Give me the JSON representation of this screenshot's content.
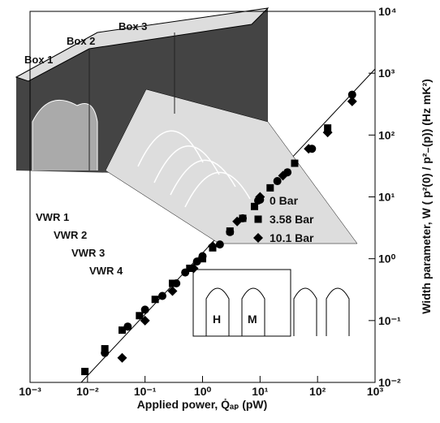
{
  "chart_data": {
    "type": "scatter",
    "x_label": "Applied power,  Q̇ₐₚ (pW)",
    "y_label": "Width parameter,  W ( p²(0) / p²₋(p))   (Hz mK²)",
    "log_x": true,
    "log_y": true,
    "xlim": [
      0.001,
      1000
    ],
    "ylim": [
      0.01,
      10000
    ],
    "xticks": [
      {
        "value": 0.001,
        "label": "10⁻³"
      },
      {
        "value": 0.01,
        "label": "10⁻²"
      },
      {
        "value": 0.1,
        "label": "10⁻¹"
      },
      {
        "value": 1,
        "label": "10⁰"
      },
      {
        "value": 10,
        "label": "10¹"
      },
      {
        "value": 100,
        "label": "10²"
      },
      {
        "value": 1000,
        "label": "10³"
      }
    ],
    "yticks": [
      {
        "value": 0.01,
        "label": "10⁻²"
      },
      {
        "value": 0.1,
        "label": "10⁻¹"
      },
      {
        "value": 1,
        "label": "10⁰"
      },
      {
        "value": 10,
        "label": "10¹"
      },
      {
        "value": 100,
        "label": "10²"
      },
      {
        "value": 1000,
        "label": "10³"
      },
      {
        "value": 10000,
        "label": "10⁴"
      }
    ],
    "series": [
      {
        "name": "0 Bar",
        "marker": "circle",
        "color": "#000000",
        "x": [
          0.02,
          0.05,
          0.1,
          0.2,
          0.35,
          0.5,
          0.8,
          1,
          2,
          3,
          5,
          10,
          20,
          30,
          80,
          400
        ],
        "values": [
          0.03,
          0.08,
          0.15,
          0.25,
          0.4,
          0.6,
          0.9,
          1.1,
          1.7,
          2.7,
          4.5,
          9,
          18,
          25,
          60,
          450
        ]
      },
      {
        "name": "3.58 Bar",
        "marker": "square",
        "color": "#000000",
        "x": [
          0.009,
          0.02,
          0.04,
          0.08,
          0.15,
          0.3,
          0.6,
          1,
          1.5,
          3,
          5,
          8,
          15,
          40,
          150
        ],
        "values": [
          0.015,
          0.035,
          0.07,
          0.12,
          0.22,
          0.4,
          0.7,
          1,
          1.5,
          2.8,
          4.5,
          7,
          14,
          35,
          130
        ]
      },
      {
        "name": "10.1 Bar",
        "marker": "diamond",
        "color": "#000000",
        "x": [
          0.04,
          0.1,
          0.3,
          0.7,
          1.5,
          4,
          10,
          25,
          70,
          150,
          400
        ],
        "values": [
          0.025,
          0.1,
          0.3,
          0.7,
          1.6,
          4,
          10,
          22,
          60,
          110,
          350
        ]
      }
    ],
    "annotations": [
      "Box 1",
      "Box 2",
      "Box 3",
      "VWR 1",
      "VWR 2",
      "VWR 3",
      "VWR 4",
      "H",
      "M"
    ]
  }
}
